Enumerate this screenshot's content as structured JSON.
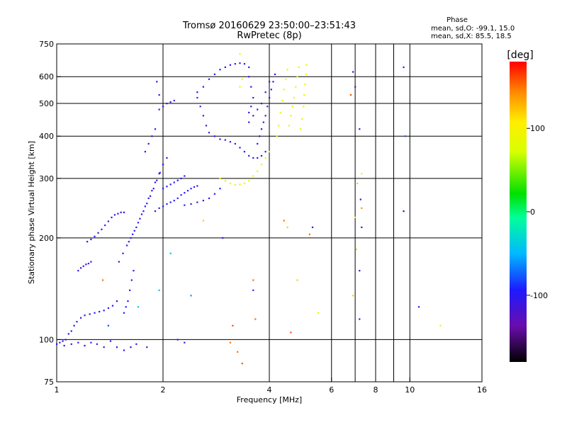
{
  "header": {
    "title_line1": "Tromsø 20160629 23:50:00–23:51:43",
    "title_line2": "RwPretec (8p)"
  },
  "phase_info": {
    "heading": "Phase",
    "line_o": "mean, sd,O: -99.1, 15.0",
    "line_x": "mean, sd,X:  85.5, 18.5"
  },
  "colorbar": {
    "unit": "[deg]",
    "range": [
      -180,
      180
    ],
    "ticks": [
      {
        "value": 100,
        "label": "100"
      },
      {
        "value": 0,
        "label": "0"
      },
      {
        "value": -100,
        "label": "-100"
      }
    ]
  },
  "chart_data": {
    "type": "scatter",
    "title": "Tromsø 20160629 23:50:00–23:51:43",
    "subtitle": "RwPretec (8p)",
    "xlabel": "Frequency [MHz]",
    "ylabel": "Stationary phase Virtual Height [km]",
    "xscale": "log",
    "yscale": "log",
    "xlim": [
      1,
      16
    ],
    "ylim": [
      75,
      750
    ],
    "grid": true,
    "xticks": [
      {
        "value": 1,
        "label": "1"
      },
      {
        "value": 2,
        "label": "2"
      },
      {
        "value": 4,
        "label": "4"
      },
      {
        "value": 6,
        "label": "6"
      },
      {
        "value": 8,
        "label": "8"
      },
      {
        "value": 10,
        "label": "10"
      },
      {
        "value": 16,
        "label": "16"
      }
    ],
    "yticks": [
      {
        "value": 75,
        "label": "75"
      },
      {
        "value": 100,
        "label": "100"
      },
      {
        "value": 200,
        "label": "200"
      },
      {
        "value": 300,
        "label": "300"
      },
      {
        "value": 400,
        "label": "400"
      },
      {
        "value": 500,
        "label": "500"
      },
      {
        "value": 600,
        "label": "600"
      },
      {
        "value": 750,
        "label": "750"
      }
    ],
    "x_gridlines": [
      2,
      4,
      6,
      7,
      8,
      9,
      10
    ],
    "y_gridlines": [
      100,
      200,
      300,
      400,
      500,
      600
    ],
    "points": [
      [
        1.0,
        97,
        -100
      ],
      [
        1.02,
        98,
        -100
      ],
      [
        1.04,
        99,
        -100
      ],
      [
        1.06,
        100,
        -100
      ],
      [
        1.08,
        104,
        -100
      ],
      [
        1.1,
        106,
        -100
      ],
      [
        1.12,
        110,
        -100
      ],
      [
        1.14,
        113,
        -100
      ],
      [
        1.17,
        116,
        -100
      ],
      [
        1.2,
        118,
        -100
      ],
      [
        1.24,
        119,
        -100
      ],
      [
        1.28,
        120,
        -100
      ],
      [
        1.32,
        121,
        -100
      ],
      [
        1.36,
        122,
        -100
      ],
      [
        1.4,
        124,
        -100
      ],
      [
        1.44,
        126,
        -100
      ],
      [
        1.48,
        130,
        -100
      ],
      [
        1.05,
        96,
        -105
      ],
      [
        1.1,
        97,
        -105
      ],
      [
        1.15,
        98,
        -105
      ],
      [
        1.2,
        96,
        -105
      ],
      [
        1.25,
        98,
        -105
      ],
      [
        1.3,
        97,
        -105
      ],
      [
        1.36,
        95,
        -105
      ],
      [
        1.42,
        99,
        -105
      ],
      [
        1.48,
        95,
        -105
      ],
      [
        1.55,
        93,
        -100
      ],
      [
        1.62,
        95,
        -100
      ],
      [
        1.68,
        97,
        -100
      ],
      [
        1.55,
        120,
        -100
      ],
      [
        1.57,
        125,
        -100
      ],
      [
        1.59,
        130,
        -100
      ],
      [
        1.61,
        140,
        -100
      ],
      [
        1.63,
        150,
        -100
      ],
      [
        1.65,
        160,
        -100
      ],
      [
        1.15,
        160,
        -105
      ],
      [
        1.17,
        163,
        -105
      ],
      [
        1.19,
        165,
        -105
      ],
      [
        1.21,
        167,
        -105
      ],
      [
        1.23,
        168,
        -105
      ],
      [
        1.25,
        170,
        -105
      ],
      [
        1.22,
        195,
        -105
      ],
      [
        1.25,
        198,
        -105
      ],
      [
        1.28,
        202,
        -105
      ],
      [
        1.31,
        207,
        -105
      ],
      [
        1.34,
        212,
        -105
      ],
      [
        1.37,
        218,
        -105
      ],
      [
        1.4,
        224,
        -105
      ],
      [
        1.43,
        230,
        -105
      ],
      [
        1.46,
        234,
        -105
      ],
      [
        1.49,
        236,
        -105
      ],
      [
        1.52,
        238,
        -105
      ],
      [
        1.55,
        238,
        -105
      ],
      [
        1.5,
        170,
        -100
      ],
      [
        1.54,
        180,
        -100
      ],
      [
        1.58,
        190,
        -100
      ],
      [
        1.62,
        200,
        -100
      ],
      [
        1.66,
        210,
        -100
      ],
      [
        1.7,
        222,
        -100
      ],
      [
        1.74,
        235,
        -100
      ],
      [
        1.78,
        248,
        -100
      ],
      [
        1.82,
        262,
        -100
      ],
      [
        1.86,
        276,
        -100
      ],
      [
        1.9,
        292,
        -100
      ],
      [
        1.95,
        310,
        -100
      ],
      [
        2.0,
        330,
        -100
      ],
      [
        2.05,
        345,
        -100
      ],
      [
        1.78,
        360,
        -100
      ],
      [
        1.82,
        380,
        -100
      ],
      [
        1.86,
        400,
        -100
      ],
      [
        1.9,
        420,
        -100
      ],
      [
        1.6,
        195,
        -105
      ],
      [
        1.64,
        205,
        -105
      ],
      [
        1.68,
        215,
        -105
      ],
      [
        1.72,
        228,
        -105
      ],
      [
        1.76,
        240,
        -105
      ],
      [
        1.8,
        253,
        -105
      ],
      [
        1.84,
        266,
        -105
      ],
      [
        1.88,
        280,
        -105
      ],
      [
        1.92,
        296,
        -105
      ],
      [
        1.96,
        312,
        -105
      ],
      [
        1.9,
        240,
        -100
      ],
      [
        1.95,
        245,
        -100
      ],
      [
        2.0,
        248,
        -100
      ],
      [
        2.05,
        252,
        -100
      ],
      [
        2.1,
        255,
        -100
      ],
      [
        2.15,
        258,
        -100
      ],
      [
        2.2,
        262,
        -100
      ],
      [
        2.25,
        268,
        -100
      ],
      [
        2.3,
        272,
        -100
      ],
      [
        2.35,
        276,
        -100
      ],
      [
        2.4,
        280,
        -100
      ],
      [
        2.45,
        283,
        -100
      ],
      [
        2.5,
        285,
        -100
      ],
      [
        2.0,
        280,
        -100
      ],
      [
        2.05,
        284,
        -100
      ],
      [
        2.1,
        288,
        -100
      ],
      [
        2.15,
        292,
        -100
      ],
      [
        2.2,
        296,
        -100
      ],
      [
        2.25,
        300,
        -100
      ],
      [
        2.3,
        305,
        -100
      ],
      [
        2.3,
        250,
        -100
      ],
      [
        2.4,
        252,
        -100
      ],
      [
        2.5,
        255,
        -100
      ],
      [
        2.6,
        258,
        -100
      ],
      [
        2.7,
        262,
        -100
      ],
      [
        2.8,
        270,
        -100
      ],
      [
        2.9,
        280,
        -95
      ],
      [
        1.95,
        480,
        -110
      ],
      [
        2.0,
        490,
        -110
      ],
      [
        2.05,
        500,
        -110
      ],
      [
        2.1,
        505,
        -110
      ],
      [
        2.15,
        510,
        -110
      ],
      [
        1.92,
        580,
        -100
      ],
      [
        1.95,
        530,
        -100
      ],
      [
        2.5,
        520,
        -120
      ],
      [
        2.55,
        490,
        -120
      ],
      [
        2.6,
        460,
        -120
      ],
      [
        2.65,
        430,
        -120
      ],
      [
        2.7,
        410,
        -120
      ],
      [
        2.5,
        540,
        -115
      ],
      [
        2.6,
        560,
        -100
      ],
      [
        2.7,
        590,
        -100
      ],
      [
        2.8,
        610,
        -100
      ],
      [
        2.9,
        630,
        -100
      ],
      [
        3.0,
        640,
        -100
      ],
      [
        3.1,
        650,
        -100
      ],
      [
        3.2,
        655,
        -100
      ],
      [
        3.3,
        658,
        -100
      ],
      [
        3.4,
        655,
        -100
      ],
      [
        3.5,
        640,
        -100
      ],
      [
        3.5,
        600,
        -110
      ],
      [
        3.55,
        560,
        -110
      ],
      [
        3.6,
        520,
        -110
      ],
      [
        3.55,
        490,
        -110
      ],
      [
        3.5,
        470,
        -110
      ],
      [
        2.8,
        400,
        -100
      ],
      [
        2.9,
        392,
        -100
      ],
      [
        3.0,
        390,
        -100
      ],
      [
        3.1,
        385,
        -100
      ],
      [
        3.2,
        380,
        -100
      ],
      [
        3.3,
        370,
        -100
      ],
      [
        3.4,
        360,
        -100
      ],
      [
        3.5,
        350,
        -100
      ],
      [
        3.6,
        345,
        -100
      ],
      [
        3.7,
        345,
        -100
      ],
      [
        3.8,
        350,
        -100
      ],
      [
        3.9,
        360,
        -100
      ],
      [
        3.7,
        380,
        -100
      ],
      [
        3.75,
        400,
        -100
      ],
      [
        3.8,
        420,
        -100
      ],
      [
        3.85,
        440,
        -100
      ],
      [
        3.9,
        460,
        -100
      ],
      [
        3.95,
        490,
        -100
      ],
      [
        4.0,
        520,
        -100
      ],
      [
        4.05,
        550,
        -100
      ],
      [
        4.1,
        580,
        -100
      ],
      [
        4.15,
        610,
        -100
      ],
      [
        3.5,
        440,
        -110
      ],
      [
        3.6,
        460,
        -110
      ],
      [
        3.7,
        480,
        -110
      ],
      [
        3.8,
        500,
        -110
      ],
      [
        3.9,
        540,
        -110
      ],
      [
        4.0,
        580,
        -110
      ],
      [
        2.9,
        300,
        90
      ],
      [
        3.0,
        295,
        90
      ],
      [
        3.1,
        290,
        90
      ],
      [
        3.2,
        287,
        90
      ],
      [
        3.3,
        288,
        90
      ],
      [
        3.4,
        290,
        90
      ],
      [
        3.5,
        295,
        90
      ],
      [
        3.6,
        305,
        90
      ],
      [
        3.7,
        315,
        90
      ],
      [
        3.8,
        330,
        90
      ],
      [
        3.9,
        345,
        90
      ],
      [
        4.0,
        360,
        90
      ],
      [
        4.2,
        400,
        90
      ],
      [
        4.25,
        430,
        90
      ],
      [
        4.3,
        470,
        90
      ],
      [
        4.35,
        510,
        90
      ],
      [
        4.4,
        550,
        90
      ],
      [
        4.45,
        590,
        90
      ],
      [
        4.5,
        630,
        90
      ],
      [
        4.55,
        430,
        90
      ],
      [
        4.6,
        460,
        90
      ],
      [
        4.65,
        490,
        90
      ],
      [
        4.7,
        520,
        90
      ],
      [
        4.75,
        560,
        90
      ],
      [
        4.8,
        600,
        90
      ],
      [
        4.85,
        640,
        90
      ],
      [
        4.9,
        420,
        90
      ],
      [
        4.95,
        450,
        90
      ],
      [
        5.0,
        490,
        90
      ],
      [
        5.02,
        530,
        90
      ],
      [
        5.05,
        570,
        90
      ],
      [
        5.08,
        610,
        90
      ],
      [
        5.1,
        650,
        90
      ],
      [
        3.3,
        560,
        90
      ],
      [
        3.35,
        590,
        90
      ],
      [
        3.3,
        700,
        90
      ],
      [
        2.95,
        200,
        -110
      ],
      [
        3.1,
        98,
        150
      ],
      [
        3.15,
        110,
        160
      ],
      [
        3.25,
        92,
        150
      ],
      [
        3.35,
        85,
        160
      ],
      [
        3.6,
        150,
        150
      ],
      [
        3.6,
        140,
        -90
      ],
      [
        3.65,
        115,
        150
      ],
      [
        4.6,
        105,
        160
      ],
      [
        4.8,
        150,
        120
      ],
      [
        4.4,
        225,
        150
      ],
      [
        4.5,
        215,
        120
      ],
      [
        5.2,
        205,
        150
      ],
      [
        5.3,
        215,
        -100
      ],
      [
        5.5,
        120,
        100
      ],
      [
        6.8,
        530,
        160
      ],
      [
        6.9,
        620,
        -100
      ],
      [
        7.0,
        560,
        -100
      ],
      [
        7.1,
        290,
        120
      ],
      [
        7.2,
        420,
        -100
      ],
      [
        7.25,
        260,
        -100
      ],
      [
        7.3,
        245,
        140
      ],
      [
        7.3,
        215,
        -120
      ],
      [
        7.2,
        160,
        -100
      ],
      [
        7.0,
        230,
        80
      ],
      [
        7.05,
        185,
        60
      ],
      [
        6.9,
        135,
        120
      ],
      [
        7.2,
        115,
        -120
      ],
      [
        7.3,
        310,
        100
      ],
      [
        9.6,
        640,
        -100
      ],
      [
        9.7,
        400,
        -80
      ],
      [
        9.6,
        240,
        -150
      ],
      [
        10.6,
        125,
        -100
      ],
      [
        12.2,
        110,
        100
      ],
      [
        2.1,
        180,
        -40
      ],
      [
        1.95,
        140,
        -40
      ],
      [
        2.2,
        100,
        -110
      ],
      [
        2.3,
        98,
        -110
      ],
      [
        2.4,
        135,
        -60
      ],
      [
        1.7,
        125,
        -40
      ],
      [
        1.8,
        95,
        -120
      ],
      [
        2.6,
        225,
        120
      ],
      [
        1.4,
        110,
        -80
      ],
      [
        1.35,
        150,
        150
      ]
    ]
  }
}
